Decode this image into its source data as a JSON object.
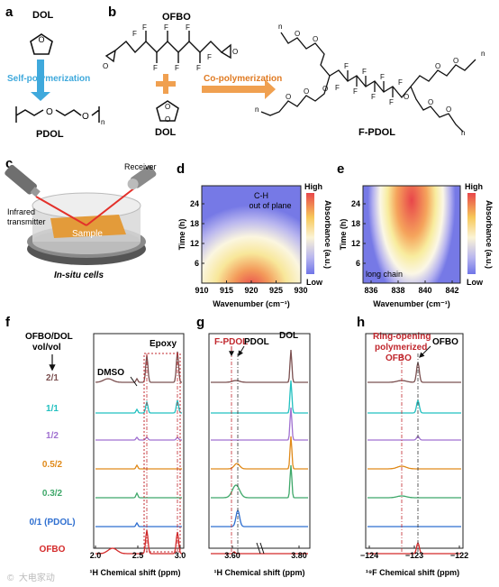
{
  "panels": {
    "a": {
      "letter": "a",
      "dol": "DOL",
      "arrow": "Self-polymerization",
      "product": "PDOL",
      "sub_n": "n"
    },
    "b": {
      "letter": "b",
      "ofbo": "OFBO",
      "dol": "DOL",
      "arrow": "Co-polymerization",
      "product": "F-PDOL",
      "F": "F",
      "O": "O",
      "n": "n"
    },
    "c": {
      "letter": "c",
      "receiver": "Receiver",
      "transmitter_1": "Infrared",
      "transmitter_2": "transmitter",
      "sample": "Sample",
      "cells": "In-situ cells"
    },
    "d": {
      "letter": "d",
      "annot_1": "C-H",
      "annot_2": "out of plane",
      "xlabel": "Wavenumber (cm⁻¹)",
      "ylabel": "Time (h)",
      "xticks": [
        "910",
        "915",
        "920",
        "925",
        "930"
      ],
      "yticks": [
        "24",
        "18",
        "12",
        "6"
      ],
      "cbar_high": "High",
      "cbar_low": "Low",
      "cbar_label": "Absorbance (a.u.)"
    },
    "e": {
      "letter": "e",
      "annot": "long chain",
      "xlabel": "Wavenumber (cm⁻¹)",
      "ylabel": "Time (h)",
      "xticks": [
        "836",
        "838",
        "840",
        "842"
      ],
      "yticks": [
        "24",
        "18",
        "12",
        "6"
      ],
      "cbar_high": "High",
      "cbar_low": "Low",
      "cbar_label": "Absorbance (a.u.)"
    },
    "f": {
      "letter": "f",
      "title_1": "OFBO/DOL",
      "title_2": "vol/vol",
      "dmso": "DMSO",
      "epoxy": "Epoxy",
      "xlabel": "¹H Chemical shift (ppm)",
      "xticks": [
        "2.0",
        "2.5",
        "3.0"
      ]
    },
    "g": {
      "letter": "g",
      "fpdol": "F-PDOL",
      "pdol": "PDOL",
      "dol": "DOL",
      "xlabel": "¹H Chemical shift (ppm)",
      "xticks": [
        "3.60",
        "3.80"
      ]
    },
    "h": {
      "letter": "h",
      "ring_1": "Ring-opening",
      "ring_2": "polymerized",
      "ring_3": "OFBO",
      "ofbo": "OFBO",
      "xlabel": "¹⁹F Chemical shift (ppm)",
      "xticks": [
        "−124",
        "−123",
        "−122"
      ]
    }
  },
  "series": [
    {
      "label": "2/1",
      "color": "#7b5050"
    },
    {
      "label": "1/1",
      "color": "#22c0c0"
    },
    {
      "label": "1/2",
      "color": "#a070d0"
    },
    {
      "label": "0.5/2",
      "color": "#e08a1a"
    },
    {
      "label": "0.3/2",
      "color": "#3fa86a"
    },
    {
      "label": "0/1 (PDOL)",
      "color": "#2f6fd0"
    },
    {
      "label": "OFBO",
      "color": "#d42a2a"
    }
  ],
  "colors": {
    "blue_arrow": "#3fa9dc",
    "orange_arrow": "#f0a050",
    "red_label": "#c0272d"
  },
  "watermark": "©  大电家动"
}
